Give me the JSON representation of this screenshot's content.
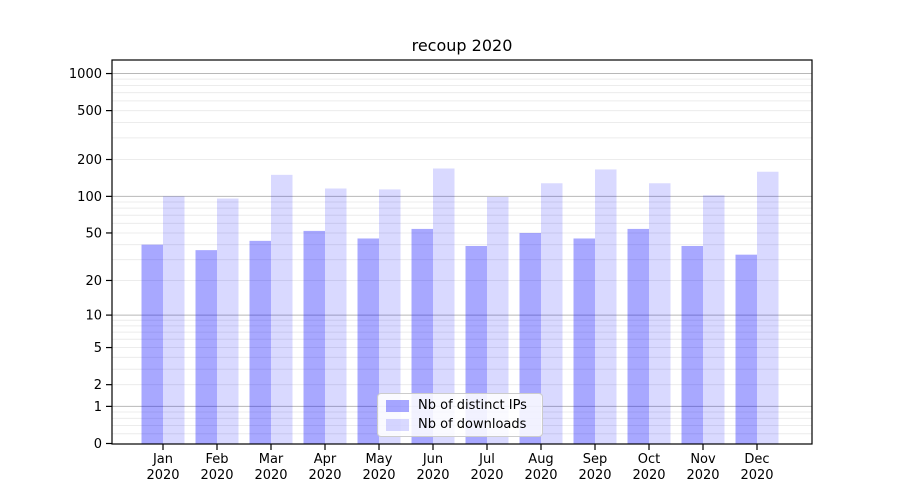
{
  "chart_data": {
    "type": "bar",
    "title": "recoup 2020",
    "categories": [
      "Jan 2020",
      "Feb 2020",
      "Mar 2020",
      "Apr 2020",
      "May 2020",
      "Jun 2020",
      "Jul 2020",
      "Aug 2020",
      "Sep 2020",
      "Oct 2020",
      "Nov 2020",
      "Dec 2020"
    ],
    "series": [
      {
        "name": "Nb of distinct IPs",
        "color": "rgba(0,0,255,0.34)",
        "values": [
          40,
          36,
          43,
          52,
          45,
          54,
          39,
          50,
          45,
          54,
          39,
          33
        ]
      },
      {
        "name": "Nb of downloads",
        "color": "rgba(0,0,255,0.15)",
        "values": [
          100,
          96,
          150,
          116,
          114,
          169,
          99,
          128,
          166,
          128,
          102,
          159
        ]
      }
    ],
    "xlabel": "",
    "ylabel": "",
    "yscale": "log1p",
    "ylim": [
      0,
      1300
    ],
    "yticks": [
      0,
      1,
      2,
      5,
      10,
      20,
      50,
      100,
      200,
      500,
      1000
    ],
    "grid": "on",
    "legend_position": "lower center"
  },
  "colors": {
    "grid_major": "#b8b8b8",
    "grid_minor": "#ececec",
    "axis": "#000000",
    "background": "#ffffff"
  }
}
